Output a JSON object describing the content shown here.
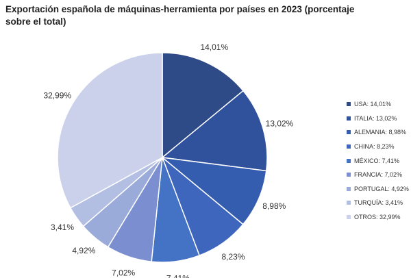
{
  "chart_data": {
    "type": "pie",
    "title": "Exportación española de máquinas-herramienta por países en 2023 (porcentaje sobre el total)",
    "slices": [
      {
        "label": "USA",
        "value": 14.01,
        "display": "14,01%",
        "legend": "USA: 14,01%",
        "color": "#2e4a87"
      },
      {
        "label": "ITALIA",
        "value": 13.02,
        "display": "13,02%",
        "legend": "ITALIA: 13,02%",
        "color": "#30529d"
      },
      {
        "label": "ALEMANIA",
        "value": 8.98,
        "display": "8,98%",
        "legend": "ALEMANIA: 8,98%",
        "color": "#355daf"
      },
      {
        "label": "CHINA",
        "value": 8.23,
        "display": "8,23%",
        "legend": "CHINA: 8,23%",
        "color": "#3e66bd"
      },
      {
        "label": "MÉXICO",
        "value": 7.41,
        "display": "7,41%",
        "legend": "MÉXICO: 7,41%",
        "color": "#4472c4"
      },
      {
        "label": "FRANCIA",
        "value": 7.02,
        "display": "7,02%",
        "legend": "FRANCIA: 7,02%",
        "color": "#7b8fd0"
      },
      {
        "label": "PORTUGAL",
        "value": 4.92,
        "display": "4,92%",
        "legend": "PORTUGAL: 4,92%",
        "color": "#9aaad9"
      },
      {
        "label": "TURQUÍA",
        "value": 3.41,
        "display": "3,41%",
        "legend": "TURQUÍA: 3,41%",
        "color": "#b3bee3"
      },
      {
        "label": "OTROS",
        "value": 32.99,
        "display": "32,99%",
        "legend": "OTROS: 32,99%",
        "color": "#cbd1ea"
      }
    ],
    "legend_position": "right"
  }
}
